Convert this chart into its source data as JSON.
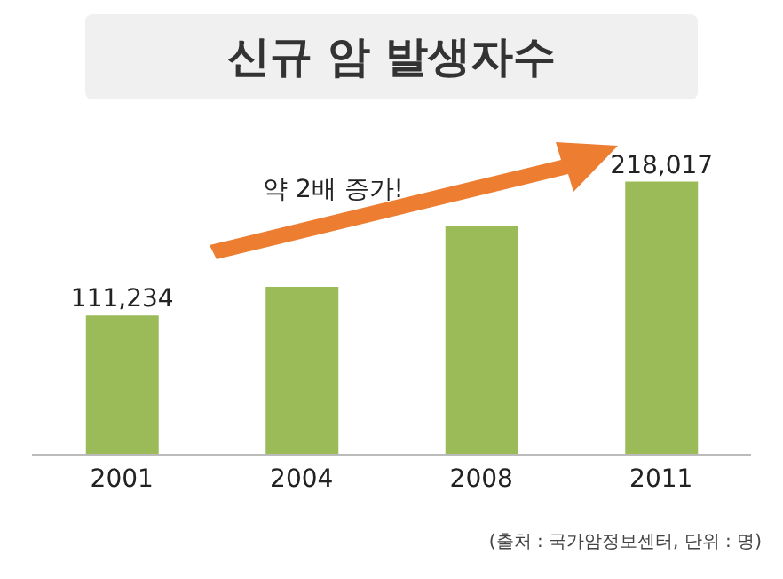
{
  "chart_data": {
    "type": "bar",
    "title": "신규 암 발생자수",
    "categories": [
      "2001",
      "2004",
      "2008",
      "2011"
    ],
    "values": [
      111234,
      134000,
      183000,
      218017
    ],
    "value_labels": [
      "111,234",
      null,
      null,
      "218,017"
    ],
    "color": "#9bbb59",
    "annotations": [
      "약 2배 증가!",
      "(출처 : 국가암정보센터, 단위 : 명)"
    ]
  }
}
